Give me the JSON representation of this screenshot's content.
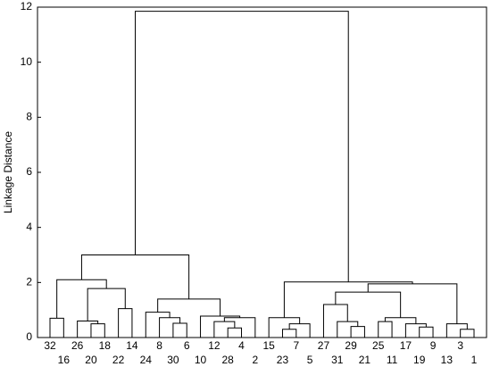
{
  "chart_data": {
    "type": "dendrogram",
    "ylabel": "Linkage Distance",
    "ylim": [
      0,
      12
    ],
    "yticks": [
      0,
      2,
      4,
      6,
      8,
      10,
      12
    ],
    "color": "#000000",
    "tree": {
      "height": 11.85,
      "children": [
        {
          "height": 3.0,
          "children": [
            {
              "height": 2.1,
              "children": [
                {
                  "height": 0.7,
                  "children": [
                    "32",
                    "16"
                  ]
                },
                {
                  "height": 1.78,
                  "children": [
                    {
                      "height": 0.6,
                      "children": [
                        "26",
                        {
                          "height": 0.5,
                          "children": [
                            "20",
                            "18"
                          ]
                        }
                      ]
                    },
                    {
                      "height": 1.05,
                      "children": [
                        "22",
                        "14"
                      ]
                    }
                  ]
                }
              ]
            },
            {
              "height": 1.4,
              "children": [
                {
                  "height": 0.92,
                  "children": [
                    "24",
                    {
                      "height": 0.72,
                      "children": [
                        "8",
                        {
                          "height": 0.52,
                          "children": [
                            "30",
                            "6"
                          ]
                        }
                      ]
                    }
                  ]
                },
                {
                  "height": 0.78,
                  "children": [
                    "10",
                    {
                      "height": 0.72,
                      "children": [
                        {
                          "height": 0.58,
                          "children": [
                            "12",
                            {
                              "height": 0.35,
                              "children": [
                                "28",
                                "4"
                              ]
                            }
                          ]
                        },
                        "2"
                      ]
                    }
                  ]
                }
              ]
            }
          ]
        },
        {
          "height": 2.02,
          "children": [
            {
              "height": 0.72,
              "children": [
                "15",
                {
                  "height": 0.5,
                  "children": [
                    {
                      "height": 0.3,
                      "children": [
                        "23",
                        "7"
                      ]
                    },
                    "5"
                  ]
                }
              ]
            },
            {
              "height": 1.95,
              "children": [
                {
                  "height": 1.65,
                  "children": [
                    {
                      "height": 1.2,
                      "children": [
                        "27",
                        {
                          "height": 0.58,
                          "children": [
                            "31",
                            {
                              "height": 0.4,
                              "children": [
                                "29",
                                "21"
                              ]
                            }
                          ]
                        }
                      ]
                    },
                    {
                      "height": 0.72,
                      "children": [
                        {
                          "height": 0.58,
                          "children": [
                            "25",
                            "11"
                          ]
                        },
                        {
                          "height": 0.5,
                          "children": [
                            "17",
                            {
                              "height": 0.38,
                              "children": [
                                "19",
                                "9"
                              ]
                            }
                          ]
                        }
                      ]
                    }
                  ]
                },
                {
                  "height": 0.5,
                  "children": [
                    "13",
                    {
                      "height": 0.3,
                      "children": [
                        "3",
                        "1"
                      ]
                    }
                  ]
                }
              ]
            }
          ]
        }
      ]
    }
  }
}
